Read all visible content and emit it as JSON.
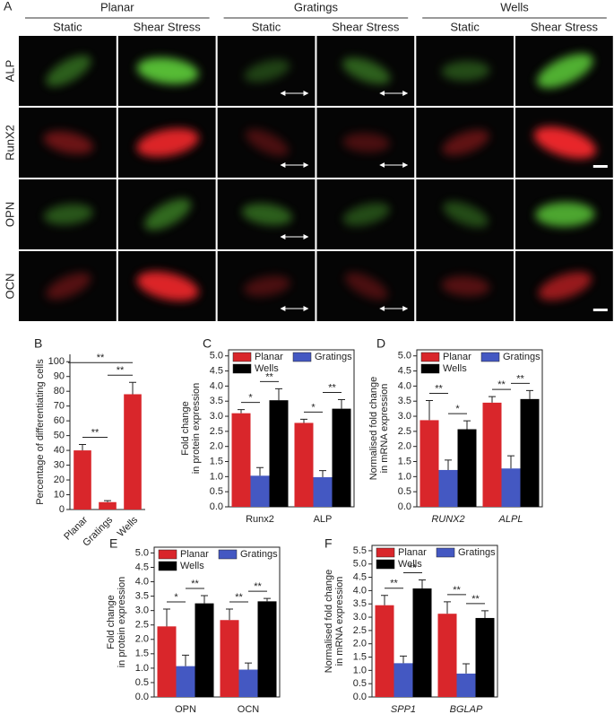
{
  "panel_a": {
    "label": "A",
    "groups": [
      "Planar",
      "Gratings",
      "Wells"
    ],
    "conditions": [
      "Static",
      "Shear Stress",
      "Static",
      "Shear Stress",
      "Static",
      "Shear Stress"
    ],
    "stains": [
      {
        "name": "ALP",
        "color": "#5fcf3a"
      },
      {
        "name": "RunX2",
        "color": "#e8262a"
      },
      {
        "name": "OPN",
        "color": "#5fcf3a"
      },
      {
        "name": "OCN",
        "color": "#e8262a"
      }
    ]
  },
  "chart_data": [
    {
      "type": "bar",
      "label": "B",
      "ylabel": [
        "Percentage of differentiating cells"
      ],
      "categories": [
        "Planar",
        "Gratings",
        "Wells"
      ],
      "values": [
        40,
        5,
        78
      ],
      "errors": [
        4,
        1,
        8
      ],
      "color": "#d9262b",
      "ylim": [
        0,
        105
      ],
      "yticks": [
        0,
        10,
        20,
        30,
        40,
        50,
        60,
        70,
        80,
        90,
        100
      ],
      "rotate_categories": true,
      "annotations": [
        "**",
        "**",
        "**"
      ]
    },
    {
      "type": "grouped_bar",
      "label": "C",
      "ylabel": [
        "Fold change",
        "in protein expression"
      ],
      "categories": [
        "Runx2",
        "ALP"
      ],
      "series": [
        {
          "name": "Planar",
          "color": "#d9262b",
          "values": [
            3.1,
            2.78
          ],
          "errors": [
            0.12,
            0.12
          ]
        },
        {
          "name": "Gratings",
          "color": "#4458c2",
          "values": [
            1.03,
            0.98
          ],
          "errors": [
            0.27,
            0.22
          ]
        },
        {
          "name": "Wells",
          "color": "#000000",
          "values": [
            3.53,
            3.25
          ],
          "errors": [
            0.38,
            0.3
          ]
        }
      ],
      "ylim": [
        0,
        5.2
      ],
      "yticks": [
        {
          "value": 0,
          "label": "0.0"
        },
        0.5,
        {
          "value": 1,
          "label": "1.0"
        },
        1.5,
        {
          "value": 2,
          "label": "2.0"
        },
        2.5,
        {
          "value": 3,
          "label": "3.0"
        },
        3.5,
        {
          "value": 4,
          "label": "4.0"
        },
        4.5,
        {
          "value": 5,
          "label": "5.0"
        }
      ],
      "annotations": [
        "*",
        "**",
        "*",
        "**"
      ]
    },
    {
      "type": "grouped_bar",
      "label": "D",
      "ylabel": [
        "Normalised fold change",
        "in mRNA expression"
      ],
      "categories": [
        "RUNX2",
        "ALPL"
      ],
      "category_style": "italic",
      "series": [
        {
          "name": "Planar",
          "color": "#d9262b",
          "values": [
            2.87,
            3.45
          ],
          "errors": [
            0.65,
            0.2
          ]
        },
        {
          "name": "Gratings",
          "color": "#4458c2",
          "values": [
            1.22,
            1.27
          ],
          "errors": [
            0.33,
            0.42
          ]
        },
        {
          "name": "Wells",
          "color": "#000000",
          "values": [
            2.57,
            3.57
          ],
          "errors": [
            0.28,
            0.28
          ]
        }
      ],
      "ylim": [
        0,
        5.2
      ],
      "yticks": [
        {
          "value": 0,
          "label": "0.0"
        },
        0.5,
        {
          "value": 1,
          "label": "1.0"
        },
        1.5,
        {
          "value": 2,
          "label": "2.0"
        },
        2.5,
        {
          "value": 3,
          "label": "3.0"
        },
        3.5,
        {
          "value": 4,
          "label": "4.0"
        },
        4.5,
        {
          "value": 5,
          "label": "5.0"
        }
      ],
      "annotations": [
        "**",
        "*",
        "**",
        "**"
      ]
    },
    {
      "type": "grouped_bar",
      "label": "E",
      "ylabel": [
        "Fold change",
        "in protein expression"
      ],
      "categories": [
        "OPN",
        "OCN"
      ],
      "series": [
        {
          "name": "Planar",
          "color": "#d9262b",
          "values": [
            2.45,
            2.67
          ],
          "errors": [
            0.6,
            0.38
          ]
        },
        {
          "name": "Gratings",
          "color": "#4458c2",
          "values": [
            1.07,
            0.95
          ],
          "errors": [
            0.38,
            0.23
          ]
        },
        {
          "name": "Wells",
          "color": "#000000",
          "values": [
            3.25,
            3.32
          ],
          "errors": [
            0.27,
            0.1
          ]
        }
      ],
      "ylim": [
        0,
        5.2
      ],
      "yticks": [
        {
          "value": 0,
          "label": "0.0"
        },
        0.5,
        {
          "value": 1,
          "label": "1.0"
        },
        1.5,
        {
          "value": 2,
          "label": "2.0"
        },
        2.5,
        {
          "value": 3,
          "label": "3.0"
        },
        3.5,
        {
          "value": 4,
          "label": "4.0"
        },
        4.5,
        {
          "value": 5,
          "label": "5.0"
        }
      ],
      "annotations": [
        "*",
        "**",
        "**",
        "**"
      ]
    },
    {
      "type": "grouped_bar",
      "label": "F",
      "ylabel": [
        "Normalised fold change",
        "in mRNA expression"
      ],
      "categories": [
        "SPP1",
        "BGLAP"
      ],
      "category_style": "italic",
      "series": [
        {
          "name": "Planar",
          "color": "#d9262b",
          "values": [
            3.45,
            3.13
          ],
          "errors": [
            0.37,
            0.45
          ]
        },
        {
          "name": "Gratings",
          "color": "#4458c2",
          "values": [
            1.27,
            0.88
          ],
          "errors": [
            0.27,
            0.37
          ]
        },
        {
          "name": "Wells",
          "color": "#000000",
          "values": [
            4.08,
            2.97
          ],
          "errors": [
            0.32,
            0.27
          ]
        }
      ],
      "ylim": [
        0,
        5.7
      ],
      "yticks": [
        {
          "value": 0,
          "label": "0.0"
        },
        0.5,
        {
          "value": 1,
          "label": "1.0"
        },
        1.5,
        {
          "value": 2,
          "label": "2.0"
        },
        2.5,
        {
          "value": 3,
          "label": "3.0"
        },
        3.5,
        {
          "value": 4,
          "label": "4.0"
        },
        4.5,
        {
          "value": 5,
          "label": "5.0"
        },
        5.5
      ],
      "annotations": [
        "**",
        "**",
        "**",
        "**"
      ]
    }
  ]
}
